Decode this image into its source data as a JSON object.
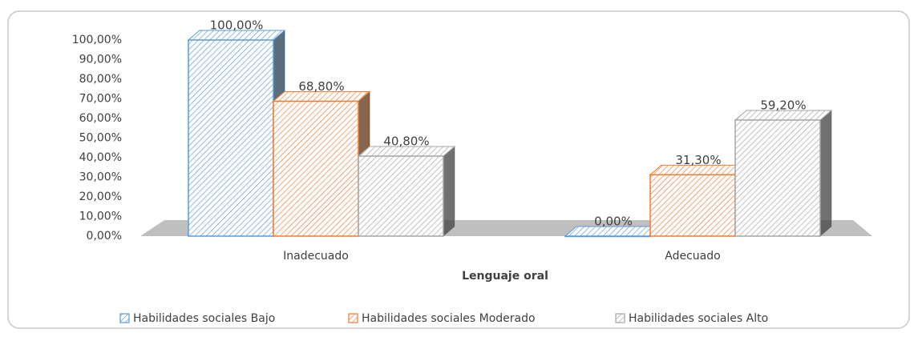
{
  "chart_data": {
    "type": "bar3d",
    "x_label": "Lenguaje oral",
    "categories": [
      "Inadecuado",
      "Adecuado"
    ],
    "series": [
      {
        "name": "Habilidades sociales Bajo",
        "color": "#5b9bd5",
        "values": [
          100,
          0
        ],
        "value_labels": [
          "100,00%",
          "0,00%"
        ]
      },
      {
        "name": "Habilidades sociales Moderado",
        "color": "#ed7d31",
        "values": [
          68.8,
          31.3
        ],
        "value_labels": [
          "68,80%",
          "31,30%"
        ]
      },
      {
        "name": "Habilidades sociales Alto",
        "color": "#a5a5a5",
        "values": [
          40.8,
          59.2
        ],
        "value_labels": [
          "40,80%",
          "59,20%"
        ]
      }
    ],
    "ylim": [
      0,
      100
    ],
    "yticks": [
      {
        "value": 0,
        "label": "0,00%"
      },
      {
        "value": 10,
        "label": "10,00%"
      },
      {
        "value": 20,
        "label": "20,00%"
      },
      {
        "value": 30,
        "label": "30,00%"
      },
      {
        "value": 40,
        "label": "40,00%"
      },
      {
        "value": 50,
        "label": "50,00%"
      },
      {
        "value": 60,
        "label": "60,00%"
      },
      {
        "value": 70,
        "label": "70,00%"
      },
      {
        "value": 80,
        "label": "80,00%"
      },
      {
        "value": 90,
        "label": "90,00%"
      },
      {
        "value": 100,
        "label": "100,00%"
      }
    ],
    "legend": "bottom"
  }
}
